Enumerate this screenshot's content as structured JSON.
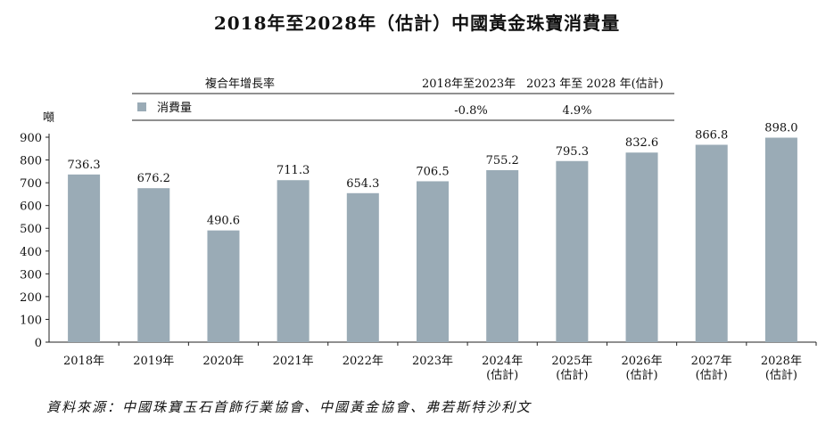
{
  "title": "2018年至2028年（估計）中國黃金珠寶消費量",
  "source": "資料來源：中國珠寶玉石首飾行業協會、中國黃金協會、弗若斯特沙利文",
  "colors": {
    "bar": "#9aabb6"
  },
  "cagr_table": {
    "header_label": "複合年增長率",
    "period1_label": "2018年至2023年",
    "period2_label": "2023 年至 2028 年(估計)",
    "legend_label": "消費量",
    "period1_value": "-0.8%",
    "period2_value": "4.9%"
  },
  "chart_data": {
    "type": "bar",
    "ylabel": "噸",
    "ylim": [
      0,
      900
    ],
    "yticks": [
      0,
      100,
      200,
      300,
      400,
      500,
      600,
      700,
      800,
      900
    ],
    "categories": [
      [
        "2018年"
      ],
      [
        "2019年"
      ],
      [
        "2020年"
      ],
      [
        "2021年"
      ],
      [
        "2022年"
      ],
      [
        "2023年"
      ],
      [
        "2024年",
        "(估計)"
      ],
      [
        "2025年",
        "(估計)"
      ],
      [
        "2026年",
        "(估計)"
      ],
      [
        "2027年",
        "(估計)"
      ],
      [
        "2028年",
        "(估計)"
      ]
    ],
    "values": [
      736.3,
      676.2,
      490.6,
      711.3,
      654.3,
      706.5,
      755.2,
      795.3,
      832.6,
      866.8,
      898.0
    ],
    "value_labels": [
      "736.3",
      "676.2",
      "490.6",
      "711.3",
      "654.3",
      "706.5",
      "755.2",
      "795.3",
      "832.6",
      "866.8",
      "898.0"
    ],
    "series": [
      {
        "name": "消費量"
      }
    ]
  }
}
